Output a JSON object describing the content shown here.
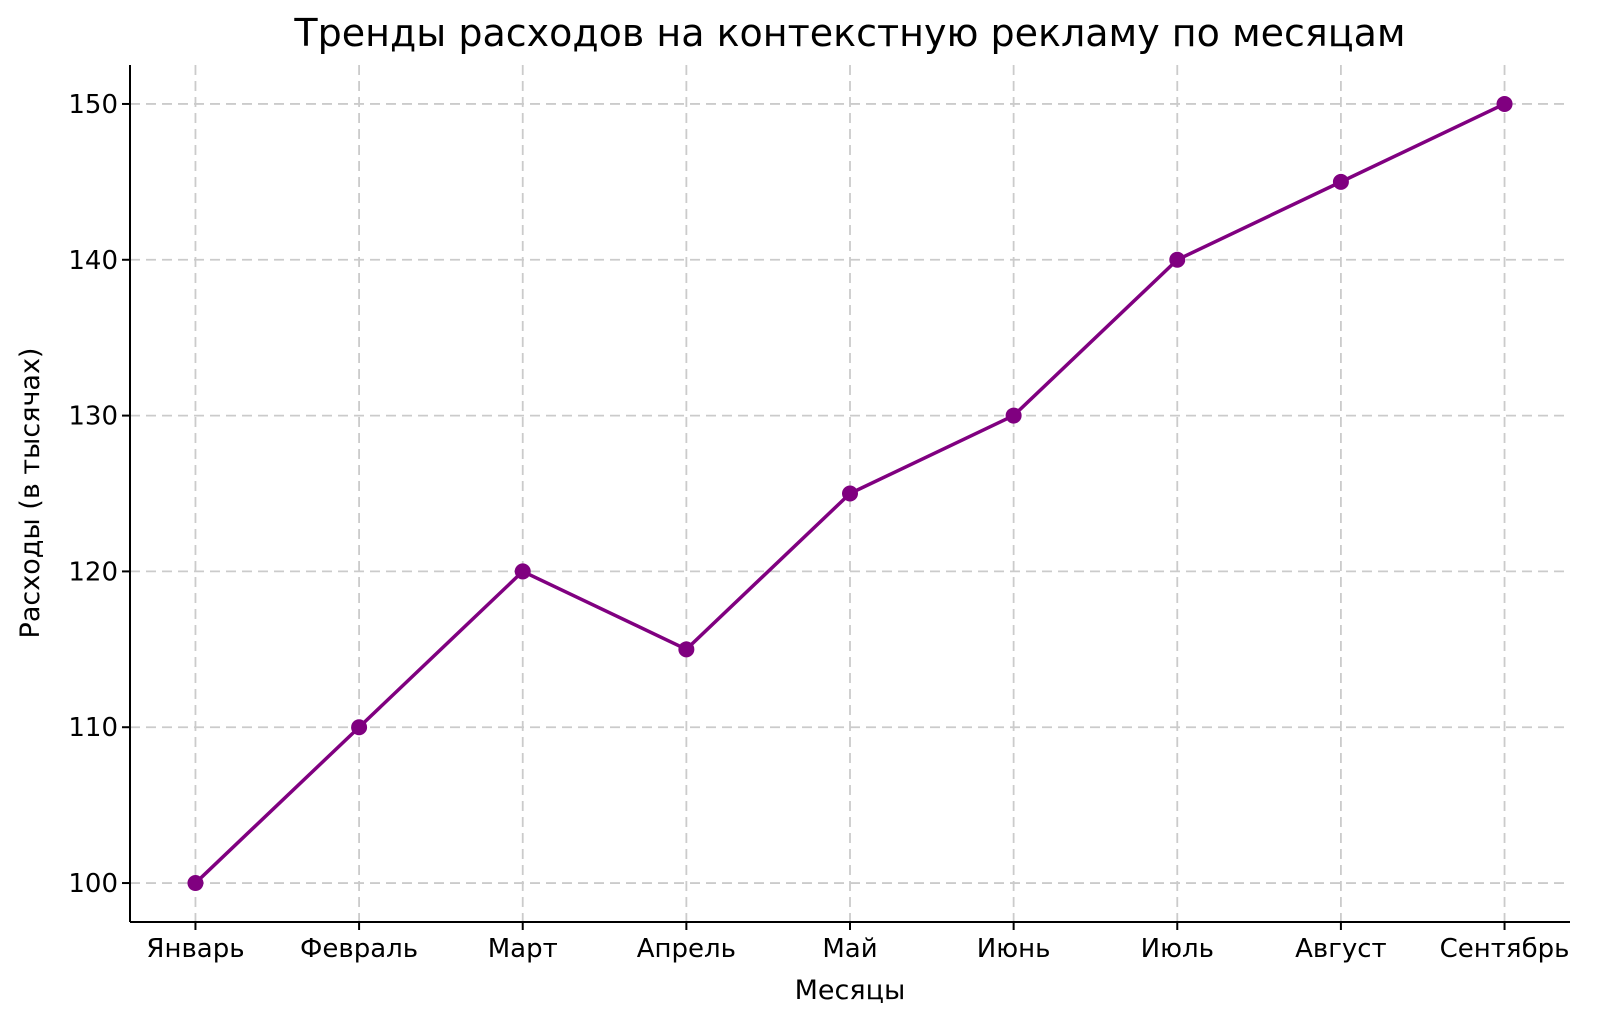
{
  "figure": {
    "background": "#ffffff"
  },
  "chart_data": {
    "type": "line",
    "title": "Тренды расходов на контекстную рекламу по месяцам",
    "xlabel": "Месяцы",
    "ylabel": "Расходы (в тысячах)",
    "categories": [
      "Январь",
      "Февраль",
      "Март",
      "Апрель",
      "Май",
      "Июнь",
      "Июль",
      "Август",
      "Сентябрь"
    ],
    "values": [
      100,
      110,
      120,
      115,
      125,
      130,
      140,
      145,
      150
    ],
    "yticks": [
      100,
      110,
      120,
      130,
      140,
      150
    ],
    "ylim": [
      97.5,
      152.5
    ],
    "xlim": [
      -0.4,
      8.4
    ],
    "grid": true,
    "grid_style": "dashed",
    "legend": "none",
    "marker": "circle",
    "line_color": "#800080",
    "marker_color": "#800080",
    "grid_color": "#cbcbcb",
    "axis_color": "#000000",
    "text_color": "#000000"
  }
}
